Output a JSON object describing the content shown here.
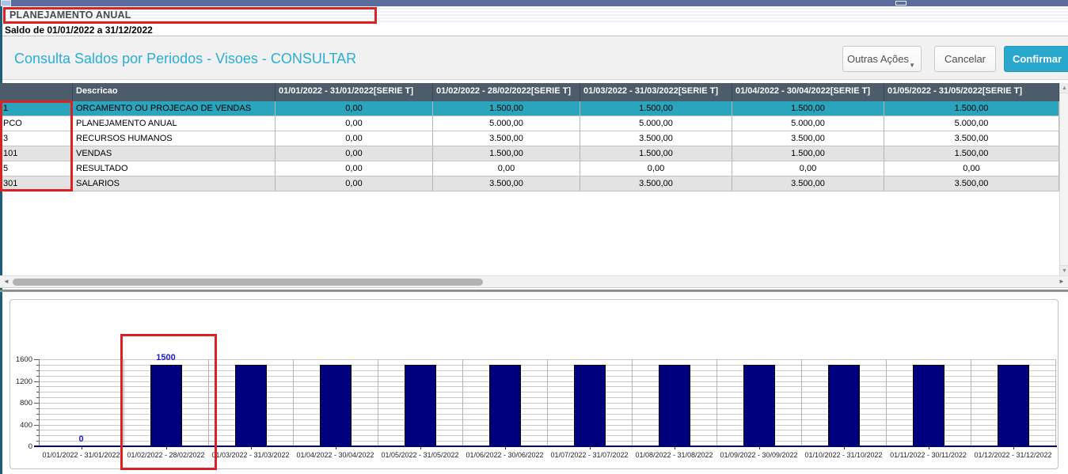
{
  "header": {
    "context_title": "PLANEJAMENTO ANUAL",
    "saldo_text": "Saldo de 01/01/2022 a 31/12/2022",
    "page_title": "Consulta Saldos por Periodos - Visoes - CONSULTAR",
    "buttons": {
      "outras_acoes": "Outras Ações",
      "cancelar": "Cancelar",
      "confirmar": "Confirmar"
    }
  },
  "icons": {
    "chevron_down": "▼",
    "scroll_up": "▲",
    "scroll_down": "▼",
    "scroll_left": "◄",
    "scroll_right": "►"
  },
  "table": {
    "columns": [
      "",
      "Descricao",
      "01/01/2022 - 31/01/2022[SERIE  T]",
      "01/02/2022 - 28/02/2022[SERIE  T]",
      "01/03/2022 - 31/03/2022[SERIE  T]",
      "01/04/2022 - 30/04/2022[SERIE  T]",
      "01/05/2022 - 31/05/2022[SERIE  T]"
    ],
    "rows": [
      {
        "code": "1",
        "descricao": "ORCAMENTO OU PROJECAO DE VENDAS",
        "values": [
          "0,00",
          "1.500,00",
          "1.500,00",
          "1.500,00",
          "1.500,00"
        ],
        "selected": true
      },
      {
        "code": "PCO",
        "descricao": "PLANEJAMENTO ANUAL",
        "values": [
          "0,00",
          "5.000,00",
          "5.000,00",
          "5.000,00",
          "5.000,00"
        ],
        "selected": false
      },
      {
        "code": "3",
        "descricao": "RECURSOS HUMANOS",
        "values": [
          "0,00",
          "3.500,00",
          "3.500,00",
          "3.500,00",
          "3.500,00"
        ],
        "selected": false
      },
      {
        "code": "101",
        "descricao": "VENDAS",
        "values": [
          "0,00",
          "1.500,00",
          "1.500,00",
          "1.500,00",
          "1.500,00"
        ],
        "selected": false
      },
      {
        "code": "5",
        "descricao": "RESULTADO",
        "values": [
          "0,00",
          "0,00",
          "0,00",
          "0,00",
          "0,00"
        ],
        "selected": false
      },
      {
        "code": "301",
        "descricao": "SALARIOS",
        "values": [
          "0,00",
          "3.500,00",
          "3.500,00",
          "3.500,00",
          "3.500,00"
        ],
        "selected": false
      }
    ]
  },
  "chart_data": {
    "type": "bar",
    "title": "",
    "categories": [
      "01/01/2022 - 31/01/2022",
      "01/02/2022 - 28/02/2022",
      "01/03/2022 - 31/03/2022",
      "01/04/2022 - 30/04/2022",
      "01/05/2022 - 31/05/2022",
      "01/06/2022 - 30/06/2022",
      "01/07/2022 - 31/07/2022",
      "01/08/2022 - 31/08/2022",
      "01/09/2022 - 30/09/2022",
      "01/10/2022 - 31/10/2022",
      "01/11/2022 - 30/11/2022",
      "01/12/2022 - 31/12/2022"
    ],
    "values": [
      0,
      1500,
      1500,
      1500,
      1500,
      1500,
      1500,
      1500,
      1500,
      1500,
      1500,
      1500
    ],
    "value_labels": [
      "0",
      "1500",
      "",
      "",
      "",
      "",
      "",
      "",
      "",
      "",
      "",
      ""
    ],
    "xlabel": "",
    "ylabel": "",
    "ylim": [
      0,
      1600
    ],
    "ytick_step_minor": 100,
    "ytick_labels": [
      "0",
      "400",
      "800",
      "1200",
      "1600"
    ],
    "grid": true,
    "legend": "none",
    "bar_color": "#00007e"
  },
  "colors": {
    "accent_teal": "#2aa7cc",
    "page_title_blue": "#2aaed6",
    "selected_row": "#2ba4bd",
    "grid_header_bg": "#4d5c6b",
    "bar_navy": "#00007e",
    "annotation_red": "#da2222",
    "titlebar_blue": "#5a6b9e"
  }
}
